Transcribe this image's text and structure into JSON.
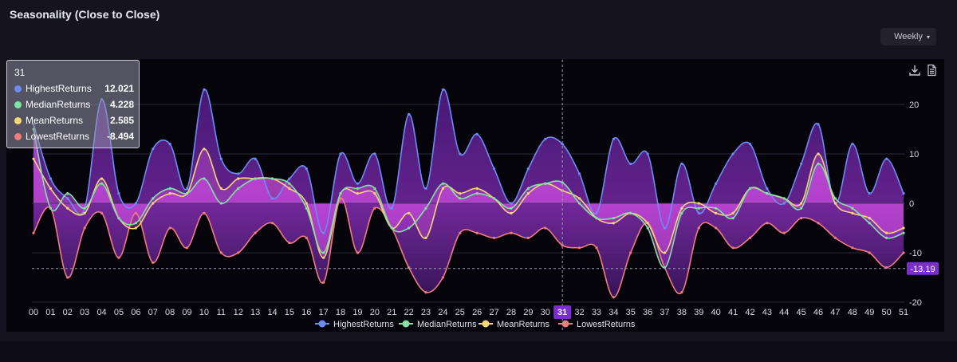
{
  "header": {
    "title": "Seasonality (Close to Close)"
  },
  "controls": {
    "period_value": "Weekly",
    "caret": "▾"
  },
  "toolbar": {
    "download_icon": "download-icon",
    "csv_icon": "document-icon"
  },
  "tooltip": {
    "title": "31",
    "rows": [
      {
        "name": "HighestReturns",
        "value": "12.021",
        "color": "#6b8cf5"
      },
      {
        "name": "MedianReturns",
        "value": "4.228",
        "color": "#7fe3a3"
      },
      {
        "name": "MeanReturns",
        "value": "2.585",
        "color": "#f7d774"
      },
      {
        "name": "LowestReturns",
        "value": "-8.494",
        "color": "#f07c7c"
      }
    ]
  },
  "crosshair": {
    "x_label": "31",
    "y_label": "-13.19",
    "y_value": -13.19
  },
  "chart_data": {
    "type": "area",
    "x_categories": [
      "00",
      "01",
      "02",
      "03",
      "04",
      "05",
      "06",
      "07",
      "08",
      "09",
      "10",
      "11",
      "12",
      "13",
      "14",
      "15",
      "16",
      "17",
      "18",
      "19",
      "20",
      "21",
      "22",
      "23",
      "24",
      "25",
      "26",
      "27",
      "28",
      "29",
      "30",
      "31",
      "32",
      "33",
      "34",
      "35",
      "36",
      "37",
      "38",
      "39",
      "40",
      "41",
      "42",
      "43",
      "44",
      "45",
      "46",
      "47",
      "48",
      "49",
      "50",
      "51"
    ],
    "y_ticks": [
      20,
      10,
      0,
      -10,
      -20
    ],
    "ylim": [
      -20,
      25
    ],
    "grid": true,
    "legend_position": "bottom",
    "series": [
      {
        "name": "HighestReturns",
        "color": "#6b8cf5",
        "values": [
          16,
          5,
          1,
          -1,
          21,
          2,
          0,
          11,
          12,
          3,
          23,
          9,
          6,
          9,
          1,
          5,
          7,
          -6,
          10,
          4,
          10,
          -1,
          18,
          3,
          23,
          10,
          14,
          7,
          0,
          7,
          13,
          12,
          6,
          -2,
          13,
          8,
          10,
          -5,
          8,
          -2,
          4,
          10,
          12,
          3,
          0,
          8,
          16,
          0,
          12,
          2,
          9,
          2
        ]
      },
      {
        "name": "MedianReturns",
        "color": "#7fe3a3",
        "values": [
          15,
          -1,
          2,
          -1,
          4,
          -3,
          -4,
          1,
          3,
          2,
          5,
          0,
          3,
          5,
          5,
          4,
          -1,
          -10,
          2,
          3,
          3,
          -5,
          -5,
          -1,
          4,
          1,
          2,
          1,
          -1,
          3,
          4,
          4.228,
          0,
          -3,
          -3,
          -2,
          -5,
          -13,
          -2,
          -1,
          -1,
          -3,
          3,
          2,
          1,
          -1,
          8,
          1,
          -1,
          -4,
          -7,
          -6
        ]
      },
      {
        "name": "MeanReturns",
        "color": "#f7d774",
        "values": [
          9,
          3,
          -1,
          -2,
          5,
          -3,
          -5,
          0,
          2,
          2,
          11,
          3,
          5,
          5,
          5,
          3,
          0,
          -11,
          2,
          2,
          2,
          -5,
          -2,
          -7,
          3,
          2,
          3,
          1,
          -2,
          2,
          4,
          2.585,
          1,
          -3,
          -4,
          -2,
          -4,
          -10,
          -1,
          0,
          -2,
          -2,
          3,
          2,
          1,
          0,
          10,
          0,
          -2,
          -3,
          -6,
          -5
        ]
      },
      {
        "name": "LowestReturns",
        "color": "#f07c7c",
        "values": [
          -6,
          -1,
          -15,
          -5,
          -2,
          -11,
          -2,
          -12,
          -5,
          -9,
          -2,
          -10,
          -10,
          -6,
          -4,
          -8,
          -7,
          -16,
          1,
          -10,
          -1,
          -5,
          -13,
          -18,
          -15,
          -6,
          -6,
          -7,
          -6,
          -7,
          -5,
          -8.494,
          -9,
          -9,
          -19,
          -10,
          -4,
          -13,
          -18,
          -5,
          -5,
          -9,
          -7,
          -4,
          -6,
          -3,
          -4,
          -7,
          -9,
          -10,
          -13,
          -10
        ]
      }
    ]
  }
}
